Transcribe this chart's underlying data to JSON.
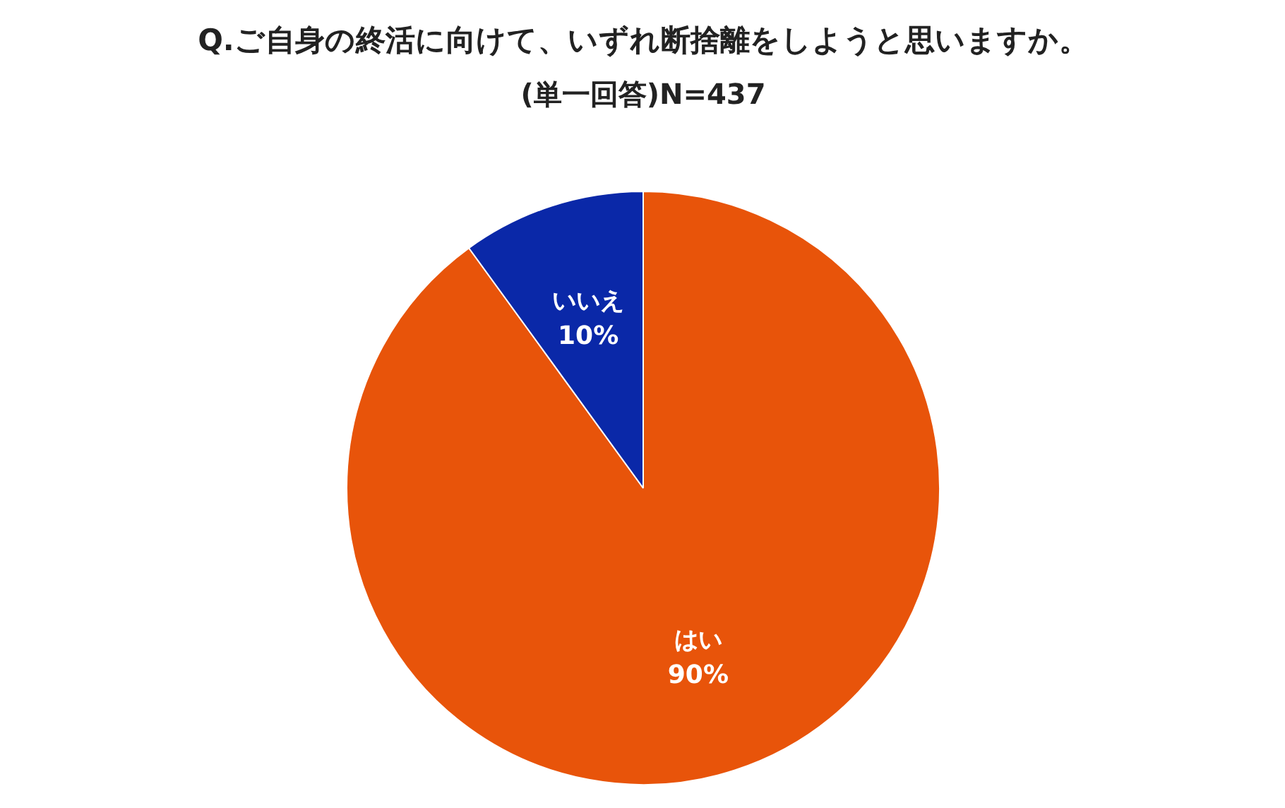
{
  "chart_data": {
    "type": "pie",
    "title": "Q.ご自身の終活に向けて、いずれ断捨離をしようと思いますか。",
    "subtitle": "(単一回答)N=437",
    "categories": [
      "はい",
      "いいえ"
    ],
    "values": [
      90,
      10
    ],
    "colors": [
      "#e8540a",
      "#0a28a8"
    ],
    "value_labels": [
      "90%",
      "10%"
    ]
  }
}
